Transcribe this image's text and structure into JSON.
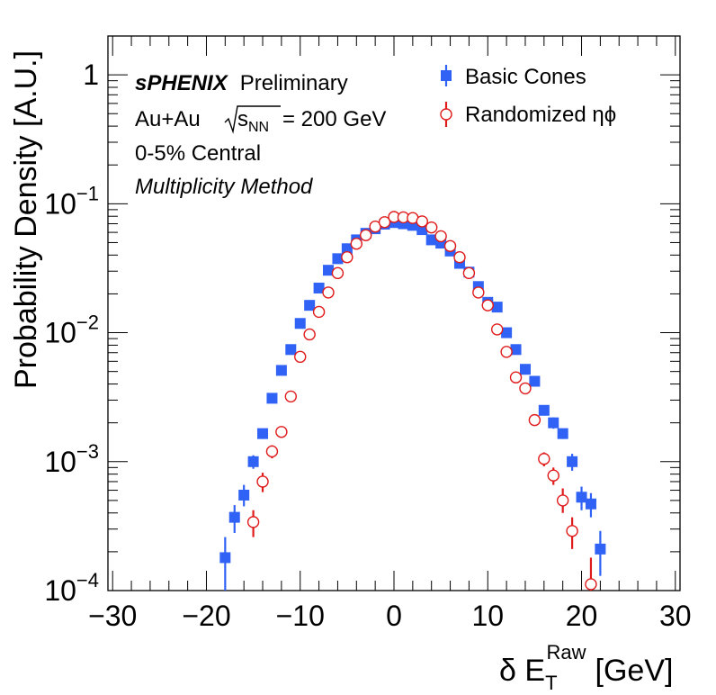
{
  "colors": {
    "basic": "#2f62f5",
    "randomized": "#e01b1b",
    "axis": "#000000",
    "background": "#ffffff"
  },
  "annotation": {
    "brand": "sPHENIX",
    "status": "Preliminary",
    "system_prefix": "Au+Au",
    "sqrt_main": "s",
    "sqrt_sub": "NN",
    "energy": "= 200 GeV",
    "centrality": "0-5% Central",
    "method": "Multiplicity Method"
  },
  "legend": {
    "basic_label": "Basic Cones",
    "randomized_label": "Randomized ηϕ"
  },
  "axis_text": {
    "ylabel": "Probability Density [A.U.]",
    "xlabel_prefix": "δ E",
    "xlabel_sub": "T",
    "xlabel_sup": "Raw",
    "xlabel_suffix": "[GeV]"
  },
  "chart_data": {
    "type": "scatter",
    "xlabel": "δ E_T^Raw [GeV]",
    "ylabel": "Probability Density [A.U.]",
    "xlim": [
      -30.5,
      30.5
    ],
    "ylim": [
      0.0001,
      2
    ],
    "yscale": "log",
    "x_ticks": [
      -30,
      -20,
      -10,
      0,
      10,
      20,
      30
    ],
    "x_tick_labels": [
      "−30",
      "−20",
      "−10",
      "0",
      "10",
      "20",
      "30"
    ],
    "y_ticks": [
      {
        "value": 1,
        "mant": "1",
        "exp": ""
      },
      {
        "value": 0.1,
        "mant": "10",
        "exp": "−1"
      },
      {
        "value": 0.01,
        "mant": "10",
        "exp": "−2"
      },
      {
        "value": 0.001,
        "mant": "10",
        "exp": "−3"
      },
      {
        "value": 0.0001,
        "mant": "10",
        "exp": "−4"
      }
    ],
    "grid": false,
    "legend_position": "top-right",
    "series": [
      {
        "name": "Basic Cones",
        "marker": "filled-square",
        "color": "#2f62f5",
        "points": [
          {
            "x": -18,
            "y": 0.00018,
            "lo": 0.0001,
            "hi": 0.00026
          },
          {
            "x": -17,
            "y": 0.00037,
            "lo": 0.00028,
            "hi": 0.00046
          },
          {
            "x": -16,
            "y": 0.00055,
            "lo": 0.00045,
            "hi": 0.00066
          },
          {
            "x": -15,
            "y": 0.001,
            "lo": 0.00088,
            "hi": 0.00112
          },
          {
            "x": -14,
            "y": 0.00165,
            "lo": 0.0015,
            "hi": 0.0018
          },
          {
            "x": -13,
            "y": 0.0031,
            "lo": 0.0029,
            "hi": 0.0033
          },
          {
            "x": -12,
            "y": 0.0051,
            "lo": 0.0049,
            "hi": 0.0053
          },
          {
            "x": -11,
            "y": 0.0074,
            "lo": 0.0072,
            "hi": 0.0076
          },
          {
            "x": -10,
            "y": 0.0118,
            "lo": 0.0116,
            "hi": 0.012
          },
          {
            "x": -9,
            "y": 0.0163,
            "lo": 0.016,
            "hi": 0.0166
          },
          {
            "x": -8,
            "y": 0.0222,
            "lo": 0.0219,
            "hi": 0.0225
          },
          {
            "x": -7,
            "y": 0.0305,
            "lo": 0.0302,
            "hi": 0.0308
          },
          {
            "x": -6,
            "y": 0.0375,
            "lo": 0.0372,
            "hi": 0.0378
          },
          {
            "x": -5,
            "y": 0.0448,
            "lo": 0.0445,
            "hi": 0.0451
          },
          {
            "x": -4,
            "y": 0.0525,
            "lo": 0.0522,
            "hi": 0.0528
          },
          {
            "x": -3,
            "y": 0.059,
            "lo": 0.0587,
            "hi": 0.0593
          },
          {
            "x": -2,
            "y": 0.064,
            "lo": 0.0637,
            "hi": 0.0643
          },
          {
            "x": -1,
            "y": 0.0695,
            "lo": 0.0692,
            "hi": 0.0698
          },
          {
            "x": 0,
            "y": 0.0715,
            "lo": 0.0712,
            "hi": 0.0718
          },
          {
            "x": 1,
            "y": 0.07,
            "lo": 0.0697,
            "hi": 0.0703
          },
          {
            "x": 2,
            "y": 0.068,
            "lo": 0.0677,
            "hi": 0.0683
          },
          {
            "x": 3,
            "y": 0.063,
            "lo": 0.0627,
            "hi": 0.0633
          },
          {
            "x": 4,
            "y": 0.0525,
            "lo": 0.0522,
            "hi": 0.0528
          },
          {
            "x": 5,
            "y": 0.0495,
            "lo": 0.0492,
            "hi": 0.0498
          },
          {
            "x": 6,
            "y": 0.043,
            "lo": 0.0427,
            "hi": 0.0433
          },
          {
            "x": 7,
            "y": 0.0345,
            "lo": 0.0342,
            "hi": 0.0348
          },
          {
            "x": 8,
            "y": 0.0295,
            "lo": 0.0292,
            "hi": 0.0298
          },
          {
            "x": 9,
            "y": 0.0228,
            "lo": 0.0225,
            "hi": 0.0231
          },
          {
            "x": 10,
            "y": 0.0172,
            "lo": 0.0169,
            "hi": 0.0175
          },
          {
            "x": 11,
            "y": 0.0158,
            "lo": 0.0155,
            "hi": 0.0161
          },
          {
            "x": 12,
            "y": 0.01,
            "lo": 0.0097,
            "hi": 0.0103
          },
          {
            "x": 13,
            "y": 0.0074,
            "lo": 0.0071,
            "hi": 0.0077
          },
          {
            "x": 14,
            "y": 0.0052,
            "lo": 0.0049,
            "hi": 0.0055
          },
          {
            "x": 15,
            "y": 0.0042,
            "lo": 0.0039,
            "hi": 0.0045
          },
          {
            "x": 16,
            "y": 0.0025,
            "lo": 0.0023,
            "hi": 0.0027
          },
          {
            "x": 17,
            "y": 0.002,
            "lo": 0.0018,
            "hi": 0.0022
          },
          {
            "x": 18,
            "y": 0.00165,
            "lo": 0.0015,
            "hi": 0.0018
          },
          {
            "x": 19,
            "y": 0.001,
            "lo": 0.00085,
            "hi": 0.00115
          },
          {
            "x": 20,
            "y": 0.00053,
            "lo": 0.00042,
            "hi": 0.00064
          },
          {
            "x": 21,
            "y": 0.00047,
            "lo": 0.00037,
            "hi": 0.00057
          },
          {
            "x": 22,
            "y": 0.00021,
            "lo": 0.00013,
            "hi": 0.00029
          }
        ]
      },
      {
        "name": "Randomized ηϕ",
        "marker": "open-circle",
        "color": "#e01b1b",
        "points": [
          {
            "x": -15,
            "y": 0.00034,
            "lo": 0.00026,
            "hi": 0.00042
          },
          {
            "x": -14,
            "y": 0.0007,
            "lo": 0.00058,
            "hi": 0.00082
          },
          {
            "x": -13,
            "y": 0.0012,
            "lo": 0.00106,
            "hi": 0.00134
          },
          {
            "x": -12,
            "y": 0.0017,
            "lo": 0.00155,
            "hi": 0.00185
          },
          {
            "x": -11,
            "y": 0.0032,
            "lo": 0.003,
            "hi": 0.0034
          },
          {
            "x": -10,
            "y": 0.0065,
            "lo": 0.0063,
            "hi": 0.0067
          },
          {
            "x": -9,
            "y": 0.0097,
            "lo": 0.0095,
            "hi": 0.0099
          },
          {
            "x": -8,
            "y": 0.0145,
            "lo": 0.0142,
            "hi": 0.0148
          },
          {
            "x": -7,
            "y": 0.0205,
            "lo": 0.0202,
            "hi": 0.0208
          },
          {
            "x": -6,
            "y": 0.029,
            "lo": 0.0287,
            "hi": 0.0293
          },
          {
            "x": -5,
            "y": 0.0385,
            "lo": 0.0382,
            "hi": 0.0388
          },
          {
            "x": -4,
            "y": 0.049,
            "lo": 0.0487,
            "hi": 0.0493
          },
          {
            "x": -3,
            "y": 0.057,
            "lo": 0.0567,
            "hi": 0.0573
          },
          {
            "x": -2,
            "y": 0.0665,
            "lo": 0.0662,
            "hi": 0.0668
          },
          {
            "x": -1,
            "y": 0.072,
            "lo": 0.0717,
            "hi": 0.0723
          },
          {
            "x": 0,
            "y": 0.079,
            "lo": 0.0787,
            "hi": 0.0793
          },
          {
            "x": 1,
            "y": 0.0785,
            "lo": 0.0782,
            "hi": 0.0788
          },
          {
            "x": 2,
            "y": 0.0775,
            "lo": 0.0772,
            "hi": 0.0778
          },
          {
            "x": 3,
            "y": 0.073,
            "lo": 0.0727,
            "hi": 0.0733
          },
          {
            "x": 4,
            "y": 0.0655,
            "lo": 0.0652,
            "hi": 0.0658
          },
          {
            "x": 5,
            "y": 0.056,
            "lo": 0.0557,
            "hi": 0.0563
          },
          {
            "x": 6,
            "y": 0.047,
            "lo": 0.0467,
            "hi": 0.0473
          },
          {
            "x": 7,
            "y": 0.0385,
            "lo": 0.0382,
            "hi": 0.0388
          },
          {
            "x": 8,
            "y": 0.029,
            "lo": 0.0287,
            "hi": 0.0293
          },
          {
            "x": 9,
            "y": 0.0205,
            "lo": 0.0202,
            "hi": 0.0208
          },
          {
            "x": 10,
            "y": 0.0163,
            "lo": 0.016,
            "hi": 0.0166
          },
          {
            "x": 11,
            "y": 0.0106,
            "lo": 0.0103,
            "hi": 0.0109
          },
          {
            "x": 12,
            "y": 0.0071,
            "lo": 0.0068,
            "hi": 0.0074
          },
          {
            "x": 13,
            "y": 0.0045,
            "lo": 0.0043,
            "hi": 0.0047
          },
          {
            "x": 14,
            "y": 0.0037,
            "lo": 0.0035,
            "hi": 0.0039
          },
          {
            "x": 15,
            "y": 0.0021,
            "lo": 0.0019,
            "hi": 0.0023
          },
          {
            "x": 16,
            "y": 0.00105,
            "lo": 0.00092,
            "hi": 0.00118
          },
          {
            "x": 17,
            "y": 0.00078,
            "lo": 0.00066,
            "hi": 0.0009
          },
          {
            "x": 18,
            "y": 0.0005,
            "lo": 0.0004,
            "hi": 0.00062
          },
          {
            "x": 19,
            "y": 0.00029,
            "lo": 0.00021,
            "hi": 0.00037
          },
          {
            "x": 21,
            "y": 0.000112,
            "lo": 0.0001,
            "hi": 0.00018
          }
        ]
      }
    ]
  }
}
